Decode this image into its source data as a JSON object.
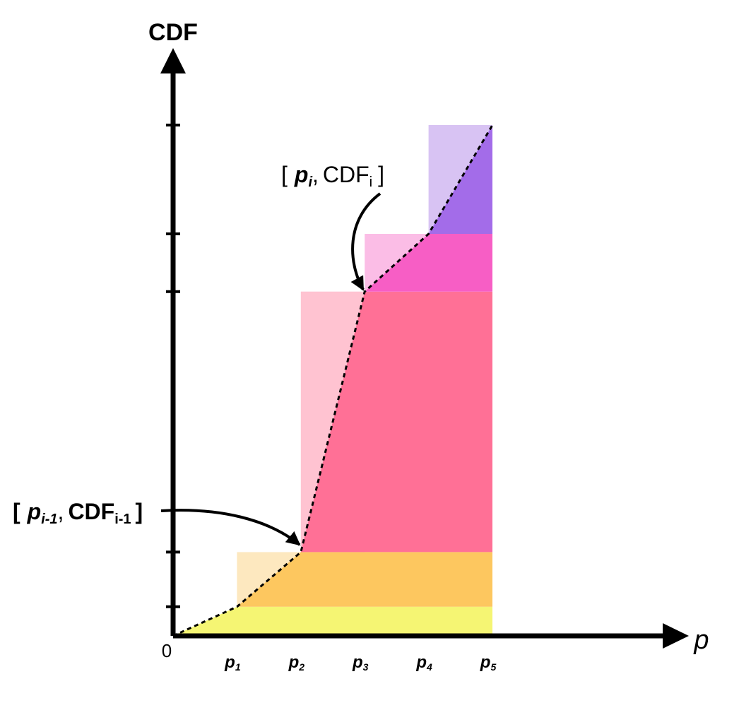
{
  "chart_data": {
    "type": "area",
    "ylabel": "CDF",
    "xlabel": "p",
    "origin_label": "0",
    "ticks": [
      {
        "base": "p",
        "sub": "1"
      },
      {
        "base": "p",
        "sub": "2"
      },
      {
        "base": "p",
        "sub": "3"
      },
      {
        "base": "p",
        "sub": "4"
      },
      {
        "base": "p",
        "sub": "5"
      }
    ],
    "cdf_points": [
      [
        0,
        0
      ],
      [
        1,
        0.057
      ],
      [
        2,
        0.164
      ],
      [
        3,
        0.674
      ],
      [
        4,
        0.787
      ],
      [
        5,
        1.0
      ]
    ],
    "y_ticks": [
      0.057,
      0.164,
      0.674,
      0.787,
      1.0
    ],
    "bands": [
      {
        "from_x": 0,
        "y0": 0,
        "y1": 0.057,
        "color": "#f5f573",
        "light": "#ffffff"
      },
      {
        "from_x": 1,
        "y0": 0.057,
        "y1": 0.164,
        "color": "#fdc75f",
        "light": "#fde8bf"
      },
      {
        "from_x": 2,
        "y0": 0.164,
        "y1": 0.674,
        "color": "#ff7096",
        "light": "#ffc3d1"
      },
      {
        "from_x": 3,
        "y0": 0.674,
        "y1": 0.787,
        "color": "#f75ec5",
        "light": "#fbbde6"
      },
      {
        "from_x": 4,
        "y0": 0.787,
        "y1": 1.0,
        "color": "#a36ce9",
        "light": "#d8c3f3"
      }
    ],
    "annotations": [
      {
        "open": "[",
        "p": "p",
        "p_sub": "i-1",
        "sep": ",",
        "cdf": "CDF",
        "cdf_sub": "i-1",
        "close": "]"
      },
      {
        "open": "[",
        "p": "p",
        "p_sub": "i",
        "sep": ",",
        "cdf": "CDF",
        "cdf_sub": "i",
        "close": "]"
      }
    ]
  }
}
